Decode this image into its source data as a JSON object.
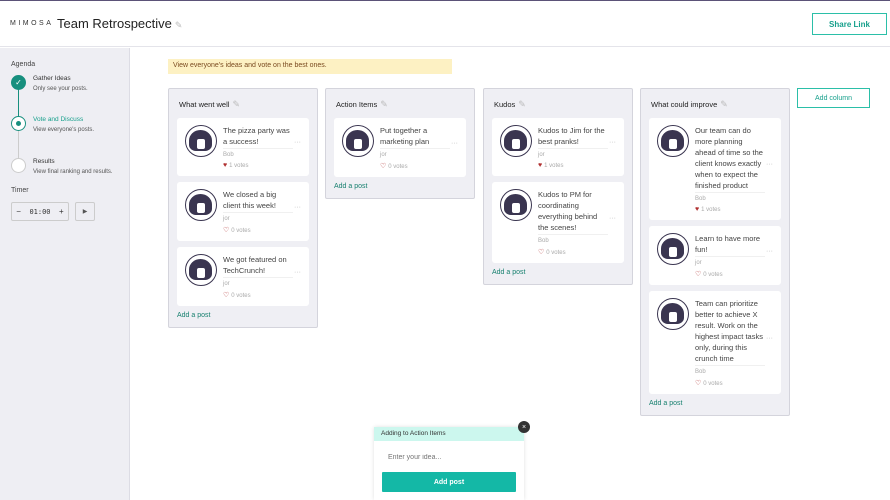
{
  "header": {
    "logo": "MIMOSA",
    "title": "Team Retrospective",
    "share_label": "Share Link"
  },
  "sidebar": {
    "agenda_label": "Agenda",
    "steps": [
      {
        "name": "Gather Ideas",
        "desc": "Only see your posts.",
        "state": "done"
      },
      {
        "name": "Vote and Discuss",
        "desc": "View everyone's posts.",
        "state": "current"
      },
      {
        "name": "Results",
        "desc": "View final ranking and results.",
        "state": "pending"
      }
    ],
    "timer_label": "Timer",
    "timer_value": "01:00",
    "minus": "−",
    "plus": "+",
    "play": "▶"
  },
  "banner": "View everyone's ideas and vote on the best ones.",
  "columns": [
    {
      "title": "What went well",
      "add_label": "Add a post",
      "posts": [
        {
          "text": "The pizza party was a success!",
          "author": "Bob",
          "votes": "1 votes",
          "voted": true
        },
        {
          "text": "We closed a big client this week!",
          "author": "jor",
          "votes": "0 votes",
          "voted": false
        },
        {
          "text": "We got featured on TechCrunch!",
          "author": "jor",
          "votes": "0 votes",
          "voted": false
        }
      ]
    },
    {
      "title": "Action Items",
      "add_label": "Add a post",
      "posts": [
        {
          "text": "Put together a marketing plan",
          "author": "jor",
          "votes": "0 votes",
          "voted": false
        }
      ]
    },
    {
      "title": "Kudos",
      "add_label": "Add a post",
      "posts": [
        {
          "text": "Kudos to Jim for the best pranks!",
          "author": "jor",
          "votes": "1 votes",
          "voted": true
        },
        {
          "text": "Kudos to PM for coordinating everything behind the scenes!",
          "author": "Bob",
          "votes": "0 votes",
          "voted": false
        }
      ]
    },
    {
      "title": "What could improve",
      "add_label": "Add a post",
      "posts": [
        {
          "text": "Our team can do more planning ahead of time so the client knows exactly when to expect the finished product",
          "author": "Bob",
          "votes": "1 votes",
          "voted": true
        },
        {
          "text": "Learn to have more fun!",
          "author": "jor",
          "votes": "0 votes",
          "voted": false
        },
        {
          "text": "Team can prioritize better to achieve X result. Work on the highest impact tasks only, during this crunch time",
          "author": "Bob",
          "votes": "0 votes",
          "voted": false
        }
      ]
    }
  ],
  "add_column_label": "Add column",
  "popup": {
    "header": "Adding to Action Items",
    "placeholder": "Enter your idea...",
    "button": "Add post",
    "close": "×"
  },
  "colors": {
    "accent": "#14b8a6",
    "banner": "#fdf1c3",
    "heart": "#b03030"
  }
}
